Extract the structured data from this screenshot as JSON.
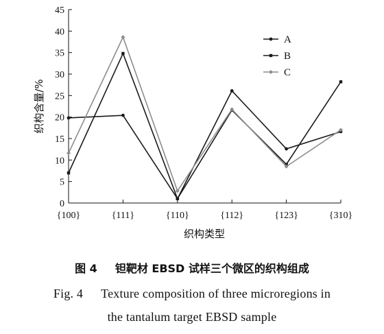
{
  "chart_data": {
    "type": "line",
    "xlabel": "织构类型",
    "ylabel": "织构含量/%",
    "categories": [
      "{100}",
      "{111}",
      "{110}",
      "{112}",
      "{123}",
      "{310}"
    ],
    "ylim": [
      0,
      45
    ],
    "yticks": [
      0,
      5,
      10,
      15,
      20,
      25,
      30,
      35,
      40,
      45
    ],
    "legend_position": "top-right",
    "series": [
      {
        "name": "A",
        "color": "#1a1a1a",
        "values": [
          19.8,
          20.4,
          1.0,
          26.1,
          12.6,
          16.6
        ]
      },
      {
        "name": "B",
        "color": "#1a1a1a",
        "values": [
          7.0,
          34.8,
          1.0,
          21.6,
          9.0,
          28.2
        ]
      },
      {
        "name": "C",
        "color": "#8c8c8c",
        "values": [
          11.6,
          38.6,
          2.8,
          21.8,
          8.5,
          17.0
        ]
      }
    ]
  },
  "caption": {
    "zh_label": "图 4",
    "zh_text": "钽靶材 EBSD 试样三个微区的织构组成",
    "en_label": "Fig. 4",
    "en_line1": "Texture composition of three microregions in",
    "en_line2": "the tantalum target EBSD sample"
  }
}
